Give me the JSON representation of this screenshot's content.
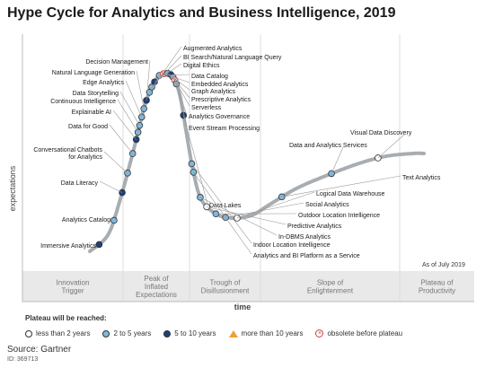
{
  "title": "Hype Cycle for Analytics and Business Intelligence, 2019",
  "as_of": "As of July 2019",
  "source": "Source: Gartner",
  "source_id": "ID: 369713",
  "colors": {
    "less_than_2": "#ffffff",
    "2_to_5": "#7fb8de",
    "5_to_10": "#1f3f7a",
    "more_than_10": "#f0a030",
    "obsolete": "#d43f3a",
    "curve": "#a8adb2"
  },
  "legend": {
    "title": "Plateau will be reached:",
    "items": [
      {
        "label": "less than 2 years",
        "key": "less_than_2"
      },
      {
        "label": "2 to 5 years",
        "key": "2_to_5"
      },
      {
        "label": "5 to 10 years",
        "key": "5_to_10"
      },
      {
        "label": "more than 10 years",
        "key": "more_than_10"
      },
      {
        "label": "obsolete before plateau",
        "key": "obsolete"
      }
    ]
  },
  "chart_data": {
    "type": "scatter",
    "xlabel": "time",
    "ylabel": "expectations",
    "phases": [
      "Innovation\nTrigger",
      "Peak of\nInflated\nExpectations",
      "Trough of\nDisillusionment",
      "Slope of\nEnlightenment",
      "Plateau of\nProductivity"
    ],
    "points": [
      {
        "name": "Immersive Analytics",
        "cat": "5_to_10",
        "pos": 0.02,
        "side": "left"
      },
      {
        "name": "Analytics Catalog",
        "cat": "2_to_5",
        "pos": 0.07,
        "side": "left"
      },
      {
        "name": "Data Literacy",
        "cat": "5_to_10",
        "pos": 0.12,
        "side": "left"
      },
      {
        "name": "Conversational Chatbots\nfor Analytics",
        "cat": "2_to_5",
        "pos": 0.155,
        "side": "left"
      },
      {
        "name": "Data for Good",
        "cat": "2_to_5",
        "pos": 0.19,
        "side": "left"
      },
      {
        "name": "Explainable AI",
        "cat": "5_to_10",
        "pos": 0.215,
        "side": "left"
      },
      {
        "name": "Continuous Intelligence",
        "cat": "2_to_5",
        "pos": 0.228,
        "side": "left"
      },
      {
        "name": "Data Storytelling",
        "cat": "2_to_5",
        "pos": 0.24,
        "side": "left"
      },
      {
        "name": "Edge Analytics",
        "cat": "2_to_5",
        "pos": 0.255,
        "side": "left"
      },
      {
        "name": "Natural Language Generation",
        "cat": "2_to_5",
        "pos": 0.27,
        "side": "left"
      },
      {
        "name": "Decision Management",
        "cat": "5_to_10",
        "pos": 0.285,
        "side": "left"
      },
      {
        "name": "Augmented Analytics",
        "cat": "2_to_5",
        "pos": 0.3,
        "side": "right"
      },
      {
        "name": "BI Search/Natural Language Query",
        "cat": "2_to_5",
        "pos": 0.31,
        "side": "right"
      },
      {
        "name": "Digital Ethics",
        "cat": "5_to_10",
        "pos": 0.32,
        "side": "right"
      },
      {
        "name": "Data Catalog",
        "cat": "2_to_5",
        "pos": 0.334,
        "side": "right"
      },
      {
        "name": "Embedded Analytics",
        "cat": "obsolete",
        "pos": 0.342,
        "side": "right"
      },
      {
        "name": "Graph Analytics",
        "cat": "2_to_5",
        "pos": 0.349,
        "side": "right"
      },
      {
        "name": "Prescriptive Analytics",
        "cat": "5_to_10",
        "pos": 0.355,
        "side": "right"
      },
      {
        "name": "Serverless",
        "cat": "2_to_5",
        "pos": 0.361,
        "side": "right"
      },
      {
        "name": "Analytics Governance",
        "cat": "obsolete",
        "pos": 0.367,
        "side": "right"
      },
      {
        "name": "Event Stream Processing",
        "cat": "2_to_5",
        "pos": 0.374,
        "side": "right"
      },
      {
        "name": "Data Lakes",
        "cat": "5_to_10",
        "pos": 0.43,
        "side": "right"
      },
      {
        "name": "Indoor Location Intelligence",
        "cat": "2_to_5",
        "pos": 0.515,
        "side": "below"
      },
      {
        "name": "Analytics and BI Platform as a Service",
        "cat": "2_to_5",
        "pos": 0.53,
        "side": "below"
      },
      {
        "name": "In-DBMS Analytics",
        "cat": "2_to_5",
        "pos": 0.575,
        "side": "right"
      },
      {
        "name": "Predictive Analytics",
        "cat": "less_than_2",
        "pos": 0.595,
        "side": "right"
      },
      {
        "name": "Outdoor Location Intelligence",
        "cat": "2_to_5",
        "pos": 0.615,
        "side": "right"
      },
      {
        "name": "Social Analytics",
        "cat": "2_to_5",
        "pos": 0.633,
        "side": "right"
      },
      {
        "name": "Logical Data Warehouse",
        "cat": "less_than_2",
        "pos": 0.653,
        "side": "right"
      },
      {
        "name": "Text Analytics",
        "cat": "2_to_5",
        "pos": 0.74,
        "side": "right"
      },
      {
        "name": "Data and Analytics Services",
        "cat": "2_to_5",
        "pos": 0.835,
        "side": "up"
      },
      {
        "name": "Visual Data Discovery",
        "cat": "less_than_2",
        "pos": 0.92,
        "side": "up"
      }
    ]
  }
}
